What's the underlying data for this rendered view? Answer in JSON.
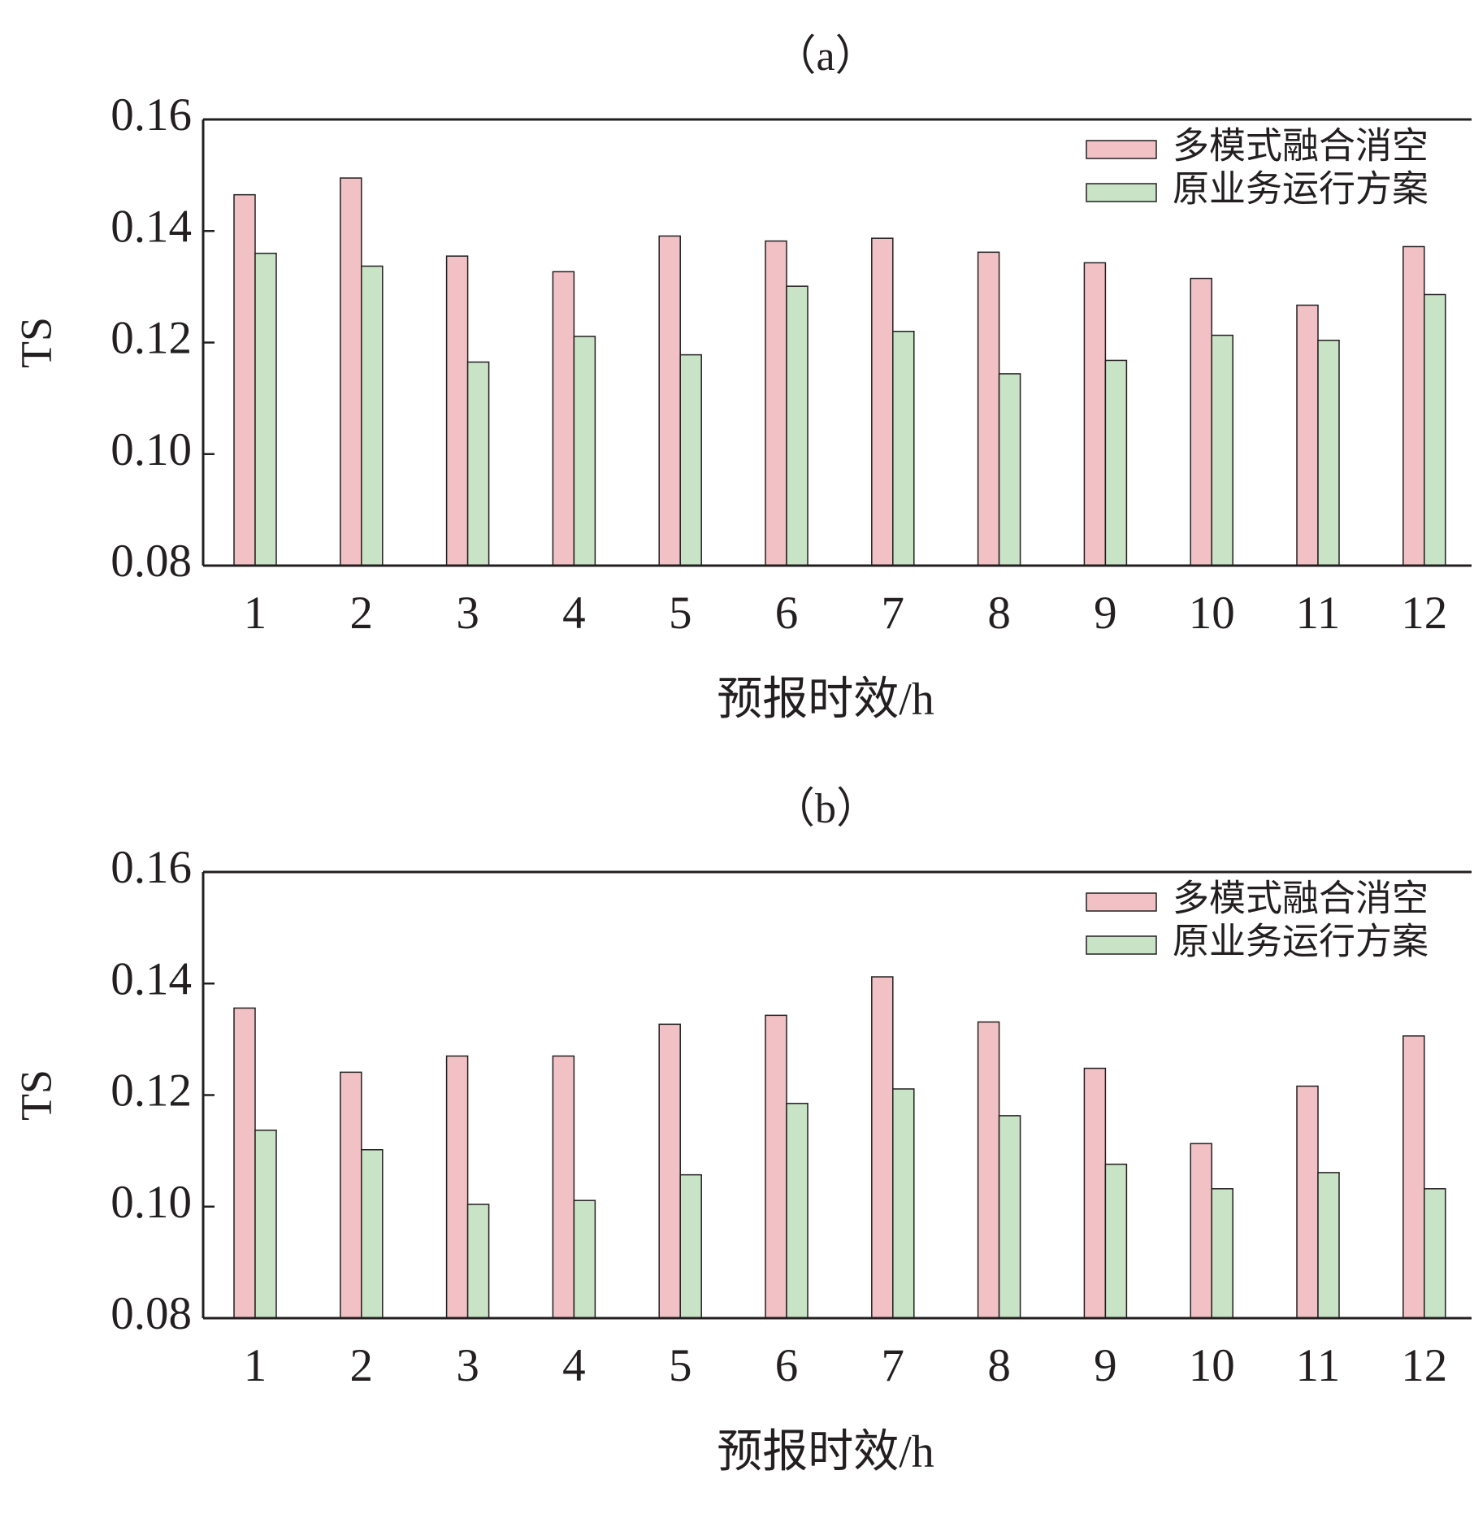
{
  "chart_data": [
    {
      "type": "bar",
      "title": "（a）",
      "x_label": "预报时效/h",
      "y_label": "TS",
      "categories": [
        "1",
        "2",
        "3",
        "4",
        "5",
        "6",
        "7",
        "8",
        "9",
        "10",
        "11",
        "12"
      ],
      "series": [
        {
          "name": "多模式融合消空",
          "color": "#f2c1c5",
          "values": [
            0.1465,
            0.1495,
            0.1355,
            0.1327,
            0.1391,
            0.1382,
            0.1387,
            0.1362,
            0.1343,
            0.1315,
            0.1267,
            0.1372
          ]
        },
        {
          "name": "原业务运行方案",
          "color": "#c8e3c6",
          "values": [
            0.136,
            0.1337,
            0.1165,
            0.1211,
            0.1178,
            0.1301,
            0.122,
            0.1144,
            0.1168,
            0.1213,
            0.1204,
            0.1286
          ]
        }
      ],
      "ylim": [
        0.08,
        0.16
      ],
      "yticks": [
        0.08,
        {
          "value": 0.1,
          "label": "0.10"
        },
        0.12,
        0.14,
        0.16
      ],
      "legend": "upper right"
    },
    {
      "type": "bar",
      "title": "（b）",
      "x_label": "预报时效/h",
      "y_label": "TS",
      "categories": [
        "1",
        "2",
        "3",
        "4",
        "5",
        "6",
        "7",
        "8",
        "9",
        "10",
        "11",
        "12"
      ],
      "series": [
        {
          "name": "多模式融合消空",
          "color": "#f2c1c5",
          "values": [
            0.1356,
            0.1241,
            0.127,
            0.127,
            0.1327,
            0.1343,
            0.1412,
            0.1331,
            0.1248,
            0.1113,
            0.1216,
            0.1306
          ]
        },
        {
          "name": "原业务运行方案",
          "color": "#c8e3c6",
          "values": [
            0.1137,
            0.1102,
            0.1004,
            0.1011,
            0.1057,
            0.1185,
            0.1211,
            0.1163,
            0.1076,
            0.1032,
            0.1061,
            0.1032
          ]
        }
      ],
      "ylim": [
        0.08,
        0.16
      ],
      "yticks": [
        0.08,
        {
          "value": 0.1,
          "label": "0.10"
        },
        0.12,
        0.14,
        0.16
      ],
      "legend": "upper right"
    }
  ]
}
